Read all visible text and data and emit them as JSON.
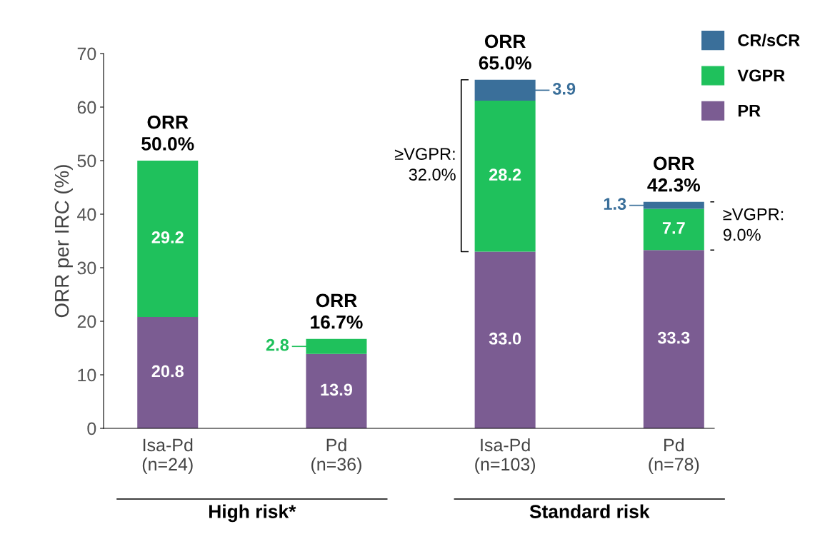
{
  "chart_data": {
    "type": "bar",
    "stacked": true,
    "ylabel": "ORR per IRC (%)",
    "categories": [
      "Isa-Pd\n(n=24)",
      "Pd\n(n=36)",
      "Isa-Pd\n(n=103)",
      "Pd\n(n=78)"
    ],
    "series": [
      {
        "name": "PR",
        "color": "#7b5c92",
        "values": [
          20.8,
          13.9,
          33.0,
          33.3
        ],
        "value_labels": [
          "20.8",
          "13.9",
          "33.0",
          "33.3"
        ]
      },
      {
        "name": "VGPR",
        "color": "#1fc15c",
        "values": [
          29.2,
          2.8,
          28.2,
          7.7
        ],
        "value_labels": [
          "29.2",
          "2.8",
          "28.2",
          "7.7"
        ]
      },
      {
        "name": "CR/sCR",
        "color": "#3a6f9a",
        "values": [
          null,
          null,
          3.9,
          1.3
        ],
        "value_labels": [
          null,
          null,
          "3.9",
          "1.3"
        ]
      }
    ],
    "totals": [
      "ORR\n50.0%",
      "ORR\n16.7%",
      "ORR\n65.0%",
      "ORR\n42.3%"
    ],
    "annotations": [
      "High risk*",
      "Standard risk",
      "≥VGPR:\n32.0%",
      "≥VGPR:\n9.0%"
    ],
    "ylim": [
      0,
      70
    ],
    "yticks": [
      0,
      10,
      20,
      30,
      40,
      50,
      60,
      70
    ],
    "grid": false,
    "legend": "top right"
  }
}
